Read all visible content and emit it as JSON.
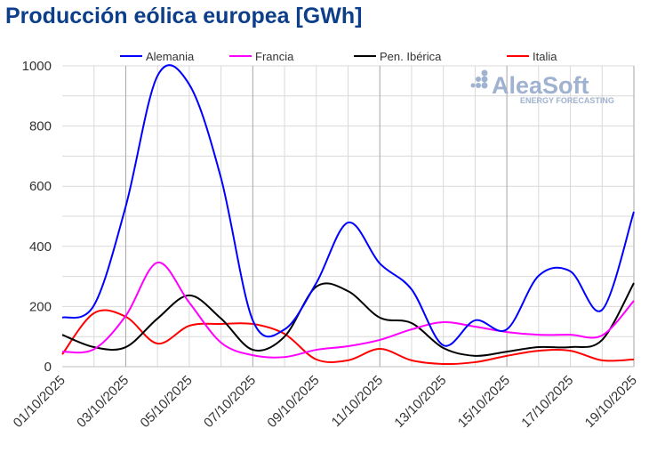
{
  "chart_data": {
    "type": "line",
    "title": "Producción eólica europea [GWh]",
    "xlabel": "",
    "ylabel": "",
    "ylim": [
      0,
      1000
    ],
    "yticks": [
      0,
      200,
      400,
      600,
      800,
      1000
    ],
    "x": [
      "01/10/2025",
      "02/10/2025",
      "03/10/2025",
      "04/10/2025",
      "05/10/2025",
      "06/10/2025",
      "07/10/2025",
      "08/10/2025",
      "09/10/2025",
      "10/10/2025",
      "11/10/2025",
      "12/10/2025",
      "13/10/2025",
      "14/10/2025",
      "15/10/2025",
      "16/10/2025",
      "17/10/2025",
      "18/10/2025",
      "19/10/2025"
    ],
    "xtick_labels": [
      "01/10/2025",
      "03/10/2025",
      "05/10/2025",
      "07/10/2025",
      "09/10/2025",
      "11/10/2025",
      "13/10/2025",
      "15/10/2025",
      "17/10/2025",
      "19/10/2025"
    ],
    "legend_position": "top",
    "grid": true,
    "series": [
      {
        "name": "Alemania",
        "color": "#0000ff",
        "values": [
          163,
          204,
          533,
          967,
          938,
          627,
          154,
          124,
          278,
          479,
          343,
          257,
          71,
          154,
          124,
          302,
          317,
          189,
          515
        ]
      },
      {
        "name": "Francia",
        "color": "#ff00ff",
        "values": [
          50,
          58,
          169,
          346,
          213,
          80,
          38,
          32,
          56,
          68,
          89,
          124,
          148,
          133,
          115,
          106,
          106,
          104,
          219
        ]
      },
      {
        "name": "Pen. Ibérica",
        "color": "#000000",
        "values": [
          106,
          65,
          65,
          160,
          237,
          160,
          56,
          100,
          266,
          251,
          163,
          145,
          62,
          36,
          50,
          65,
          65,
          89,
          278
        ]
      },
      {
        "name": "Italia",
        "color": "#ff0000",
        "values": [
          41,
          178,
          166,
          77,
          136,
          142,
          142,
          109,
          24,
          21,
          59,
          21,
          9,
          15,
          36,
          53,
          53,
          21,
          24
        ]
      }
    ]
  },
  "logo": {
    "name": "AleaSoft",
    "tagline": "ENERGY FORECASTING"
  }
}
